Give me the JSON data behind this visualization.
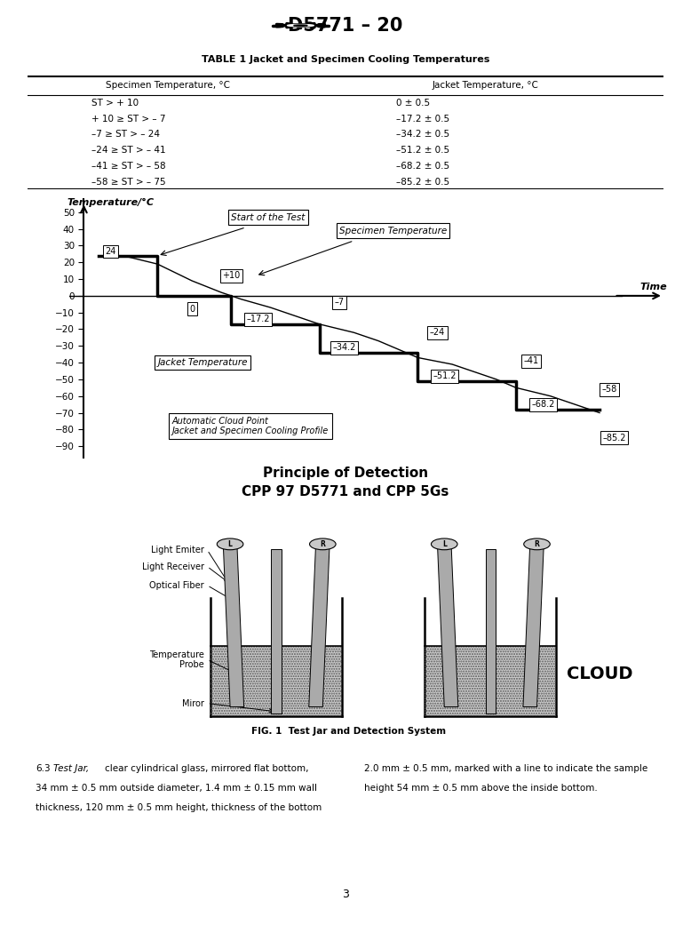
{
  "page_title": "D5771 – 20",
  "table_title": "TABLE 1 Jacket and Specimen Cooling Temperatures",
  "table_col1_header": "Specimen Temperature, °C",
  "table_col2_header": "Jacket Temperature, °C",
  "table_rows": [
    [
      "ST > + 10",
      "0 ± 0.5"
    ],
    [
      "+ 10 ≥ ST > – 7",
      "–17.2 ± 0.5"
    ],
    [
      "–7 ≥ ST > – 24",
      "–34.2 ± 0.5"
    ],
    [
      "–24 ≥ ST > – 41",
      "–51.2 ± 0.5"
    ],
    [
      "–41 ≥ ST > – 58",
      "–68.2 ± 0.5"
    ],
    [
      "–58 ≥ ST > – 75",
      "–85.2 ± 0.5"
    ]
  ],
  "chart_ylabel": "Temperature/°C",
  "chart_yticks": [
    50,
    40,
    30,
    20,
    10,
    0,
    -10,
    -20,
    -30,
    -40,
    -50,
    -60,
    -70,
    -80,
    -90
  ],
  "chart_ylim": [
    -97,
    58
  ],
  "detection_title": "Principle of Detection\nCPP 97 D5771 and CPP 5Gs",
  "fig_caption": "FIG. 1  Test Jar and Detection System",
  "background_color": "#ffffff"
}
